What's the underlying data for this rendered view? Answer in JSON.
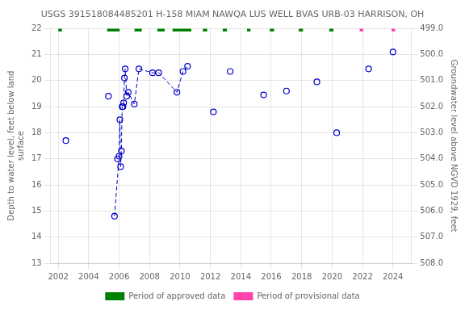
{
  "chart_data": {
    "type": "scatter",
    "title": "USGS 391518084485201 H-158 MIAM NAWQA LUS WELL BVAS URB-03 HARRISON, OH",
    "y_label": "Depth to water level, feet below land\nsurface",
    "y2_label": "Groundwater level above NGVD 1929, feet",
    "xlim": [
      2001.5,
      2025.2
    ],
    "xticks": [
      2002,
      2004,
      2006,
      2008,
      2010,
      2012,
      2014,
      2016,
      2018,
      2020,
      2022,
      2024
    ],
    "ylim": [
      13.0,
      22.0
    ],
    "yticks": [
      13,
      14,
      15,
      16,
      17,
      18,
      19,
      20,
      21,
      22
    ],
    "y2lim": [
      508.0,
      499.0
    ],
    "y2ticks": [
      {
        "value": 508,
        "label": "508.0"
      },
      {
        "value": 507,
        "label": "507.0"
      },
      {
        "value": 506,
        "label": "506.0"
      },
      {
        "value": 505,
        "label": "505.0"
      },
      {
        "value": 504,
        "label": "504.0"
      },
      {
        "value": 503,
        "label": "503.0"
      },
      {
        "value": 502,
        "label": "502.0"
      },
      {
        "value": 501,
        "label": "501.0"
      },
      {
        "value": 500,
        "label": "500.0"
      },
      {
        "value": 499,
        "label": "499.0"
      }
    ],
    "grid": true,
    "legend": "bottom",
    "band_ylim": [
      21.88,
      22.0
    ],
    "series": [
      {
        "type": "scatter",
        "marker": "circle",
        "color": "#0000cc",
        "x": [
          2002.5,
          2005.3,
          2005.7,
          2005.9,
          2006.0,
          2006.05,
          2006.1,
          2006.15,
          2006.2,
          2006.25,
          2006.3,
          2006.35,
          2006.4,
          2006.5,
          2006.6,
          2007.0,
          2007.3,
          2008.2,
          2008.6,
          2009.8,
          2010.2,
          2010.5,
          2012.2,
          2013.3,
          2015.5,
          2017.0,
          2019.0,
          2020.3,
          2022.4,
          2024.0
        ],
        "values": [
          17.7,
          19.4,
          14.8,
          17.0,
          17.1,
          18.5,
          16.7,
          17.3,
          19.0,
          19.0,
          19.15,
          20.1,
          20.45,
          19.4,
          19.55,
          19.1,
          20.45,
          20.3,
          20.3,
          19.55,
          20.35,
          20.55,
          18.8,
          20.35,
          19.45,
          19.6,
          19.95,
          18.0,
          20.45,
          21.1
        ]
      },
      {
        "type": "line",
        "line_style": "dashed",
        "color": "#0000cc",
        "x": [
          2005.7,
          2006.0,
          2006.05,
          2006.1,
          2006.15,
          2006.2,
          2006.25,
          2006.3,
          2006.35,
          2006.4,
          2006.5,
          2006.6,
          2007.0,
          2007.3,
          2008.2,
          2008.6,
          2009.8,
          2010.2,
          2010.5
        ],
        "values": [
          14.8,
          17.1,
          18.5,
          16.7,
          17.3,
          19.0,
          19.0,
          19.15,
          20.1,
          20.45,
          19.4,
          19.55,
          19.1,
          20.45,
          20.3,
          20.3,
          19.55,
          20.35,
          20.55
        ]
      },
      {
        "type": "band",
        "name": "Period of approved data",
        "color": "#008000",
        "periods": [
          [
            2002.0,
            2002.25
          ],
          [
            2005.2,
            2006.05
          ],
          [
            2007.0,
            2007.5
          ],
          [
            2008.5,
            2009.0
          ],
          [
            2009.5,
            2010.75
          ],
          [
            2011.5,
            2011.8
          ],
          [
            2012.8,
            2013.1
          ],
          [
            2014.4,
            2014.65
          ],
          [
            2015.9,
            2016.2
          ],
          [
            2017.8,
            2018.1
          ],
          [
            2019.8,
            2020.1
          ]
        ]
      },
      {
        "type": "band",
        "name": "Period of provisional data",
        "color": "#ff44aa",
        "periods": [
          [
            2021.8,
            2022.05
          ],
          [
            2023.9,
            2024.15
          ]
        ]
      }
    ]
  }
}
